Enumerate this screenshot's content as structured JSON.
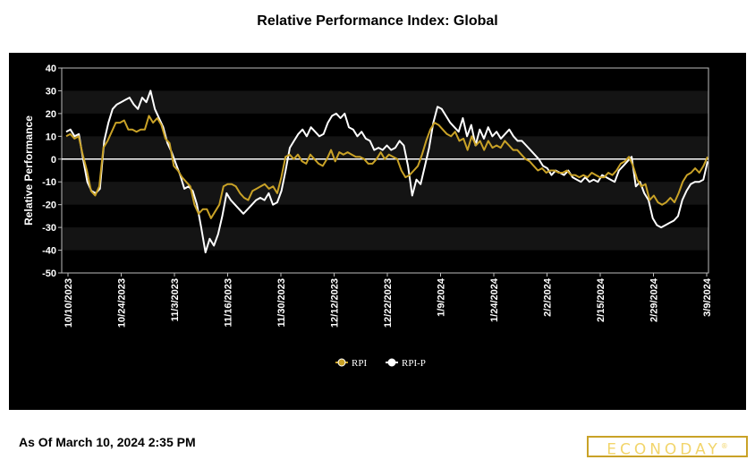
{
  "chart_data": {
    "type": "line",
    "title": "Relative Performance Index: Global",
    "ylabel": "Relative Performance",
    "xlabel": "",
    "ylim": [
      -50,
      40
    ],
    "yticks": [
      "40",
      "30",
      "20",
      "10",
      "0",
      "-10",
      "-20",
      "-30",
      "-40",
      "-50"
    ],
    "xticks": [
      "10/10/2023",
      "10/24/2023",
      "11/3/2023",
      "11/16/2023",
      "11/30/2023",
      "12/12/2023",
      "12/22/2023",
      "1/9/2024",
      "1/24/2024",
      "2/2/2024",
      "2/15/2024",
      "2/29/2024",
      "3/9/2024"
    ],
    "legend_position": "bottom",
    "zero_line": true,
    "series": [
      {
        "name": "RPI",
        "color": "#c9a227",
        "values": [
          10,
          11,
          9,
          10,
          2,
          -5,
          -14,
          -16,
          -12,
          5,
          8,
          12,
          16,
          16,
          17,
          13,
          13,
          12,
          13,
          13,
          19,
          16,
          18,
          15,
          9,
          7,
          -3,
          -5,
          -8,
          -10,
          -12,
          -20,
          -24,
          -22,
          -22,
          -26,
          -23,
          -20,
          -12,
          -11,
          -11,
          -12,
          -15,
          -17,
          -18,
          -14,
          -13,
          -12,
          -11,
          -13,
          -12,
          -15,
          -8,
          1,
          2,
          0,
          2,
          -1,
          -2,
          2,
          0,
          -2,
          -3,
          0,
          4,
          -1,
          3,
          2,
          3,
          2,
          1,
          1,
          0,
          -2,
          -2,
          0,
          3,
          0,
          2,
          1,
          0,
          -5,
          -8,
          -7,
          -5,
          -3,
          2,
          8,
          13,
          16,
          15,
          13,
          11,
          10,
          12,
          8,
          9,
          4,
          10,
          6,
          8,
          4,
          8,
          5,
          6,
          5,
          8,
          6,
          4,
          4,
          2,
          0,
          -1,
          -3,
          -5,
          -4,
          -6,
          -5,
          -5,
          -6,
          -6,
          -5,
          -7,
          -7,
          -8,
          -7,
          -8,
          -6,
          -7,
          -8,
          -8,
          -6,
          -7,
          -5,
          -2,
          -1,
          1,
          -3,
          -9,
          -12,
          -11,
          -18,
          -16,
          -19,
          -20,
          -19,
          -17,
          -19,
          -15,
          -10,
          -7,
          -6,
          -4,
          -6,
          -3,
          1
        ]
      },
      {
        "name": "RPI-P",
        "color": "#ffffff",
        "values": [
          12,
          13,
          10,
          11,
          0,
          -10,
          -14,
          -15,
          -13,
          8,
          16,
          22,
          24,
          25,
          26,
          27,
          24,
          22,
          27,
          25,
          30,
          22,
          18,
          14,
          7,
          3,
          -2,
          -7,
          -13,
          -12,
          -14,
          -20,
          -30,
          -41,
          -35,
          -38,
          -33,
          -25,
          -15,
          -18,
          -20,
          -22,
          -24,
          -22,
          -20,
          -18,
          -17,
          -18,
          -15,
          -20,
          -19,
          -14,
          -5,
          5,
          8,
          11,
          13,
          10,
          14,
          12,
          10,
          11,
          16,
          19,
          20,
          18,
          20,
          14,
          13,
          10,
          12,
          9,
          8,
          4,
          5,
          4,
          6,
          4,
          5,
          8,
          6,
          -3,
          -16,
          -9,
          -11,
          -3,
          5,
          16,
          23,
          22,
          19,
          16,
          14,
          12,
          18,
          10,
          15,
          6,
          13,
          9,
          14,
          10,
          12,
          9,
          11,
          13,
          10,
          8,
          8,
          6,
          4,
          2,
          0,
          -3,
          -4,
          -7,
          -5,
          -6,
          -7,
          -5,
          -8,
          -9,
          -10,
          -8,
          -10,
          -9,
          -10,
          -7,
          -8,
          -9,
          -10,
          -5,
          -3,
          -1,
          1,
          -12,
          -10,
          -15,
          -18,
          -26,
          -29,
          -30,
          -29,
          -28,
          -27,
          -25,
          -18,
          -14,
          -11,
          -10,
          -10,
          -9,
          -1
        ]
      }
    ]
  },
  "brand": {
    "logo_text": "ECONODAY",
    "logo_mark": "®"
  },
  "footer": {
    "as_of": "As Of March 10, 2024 2:35 PM"
  }
}
